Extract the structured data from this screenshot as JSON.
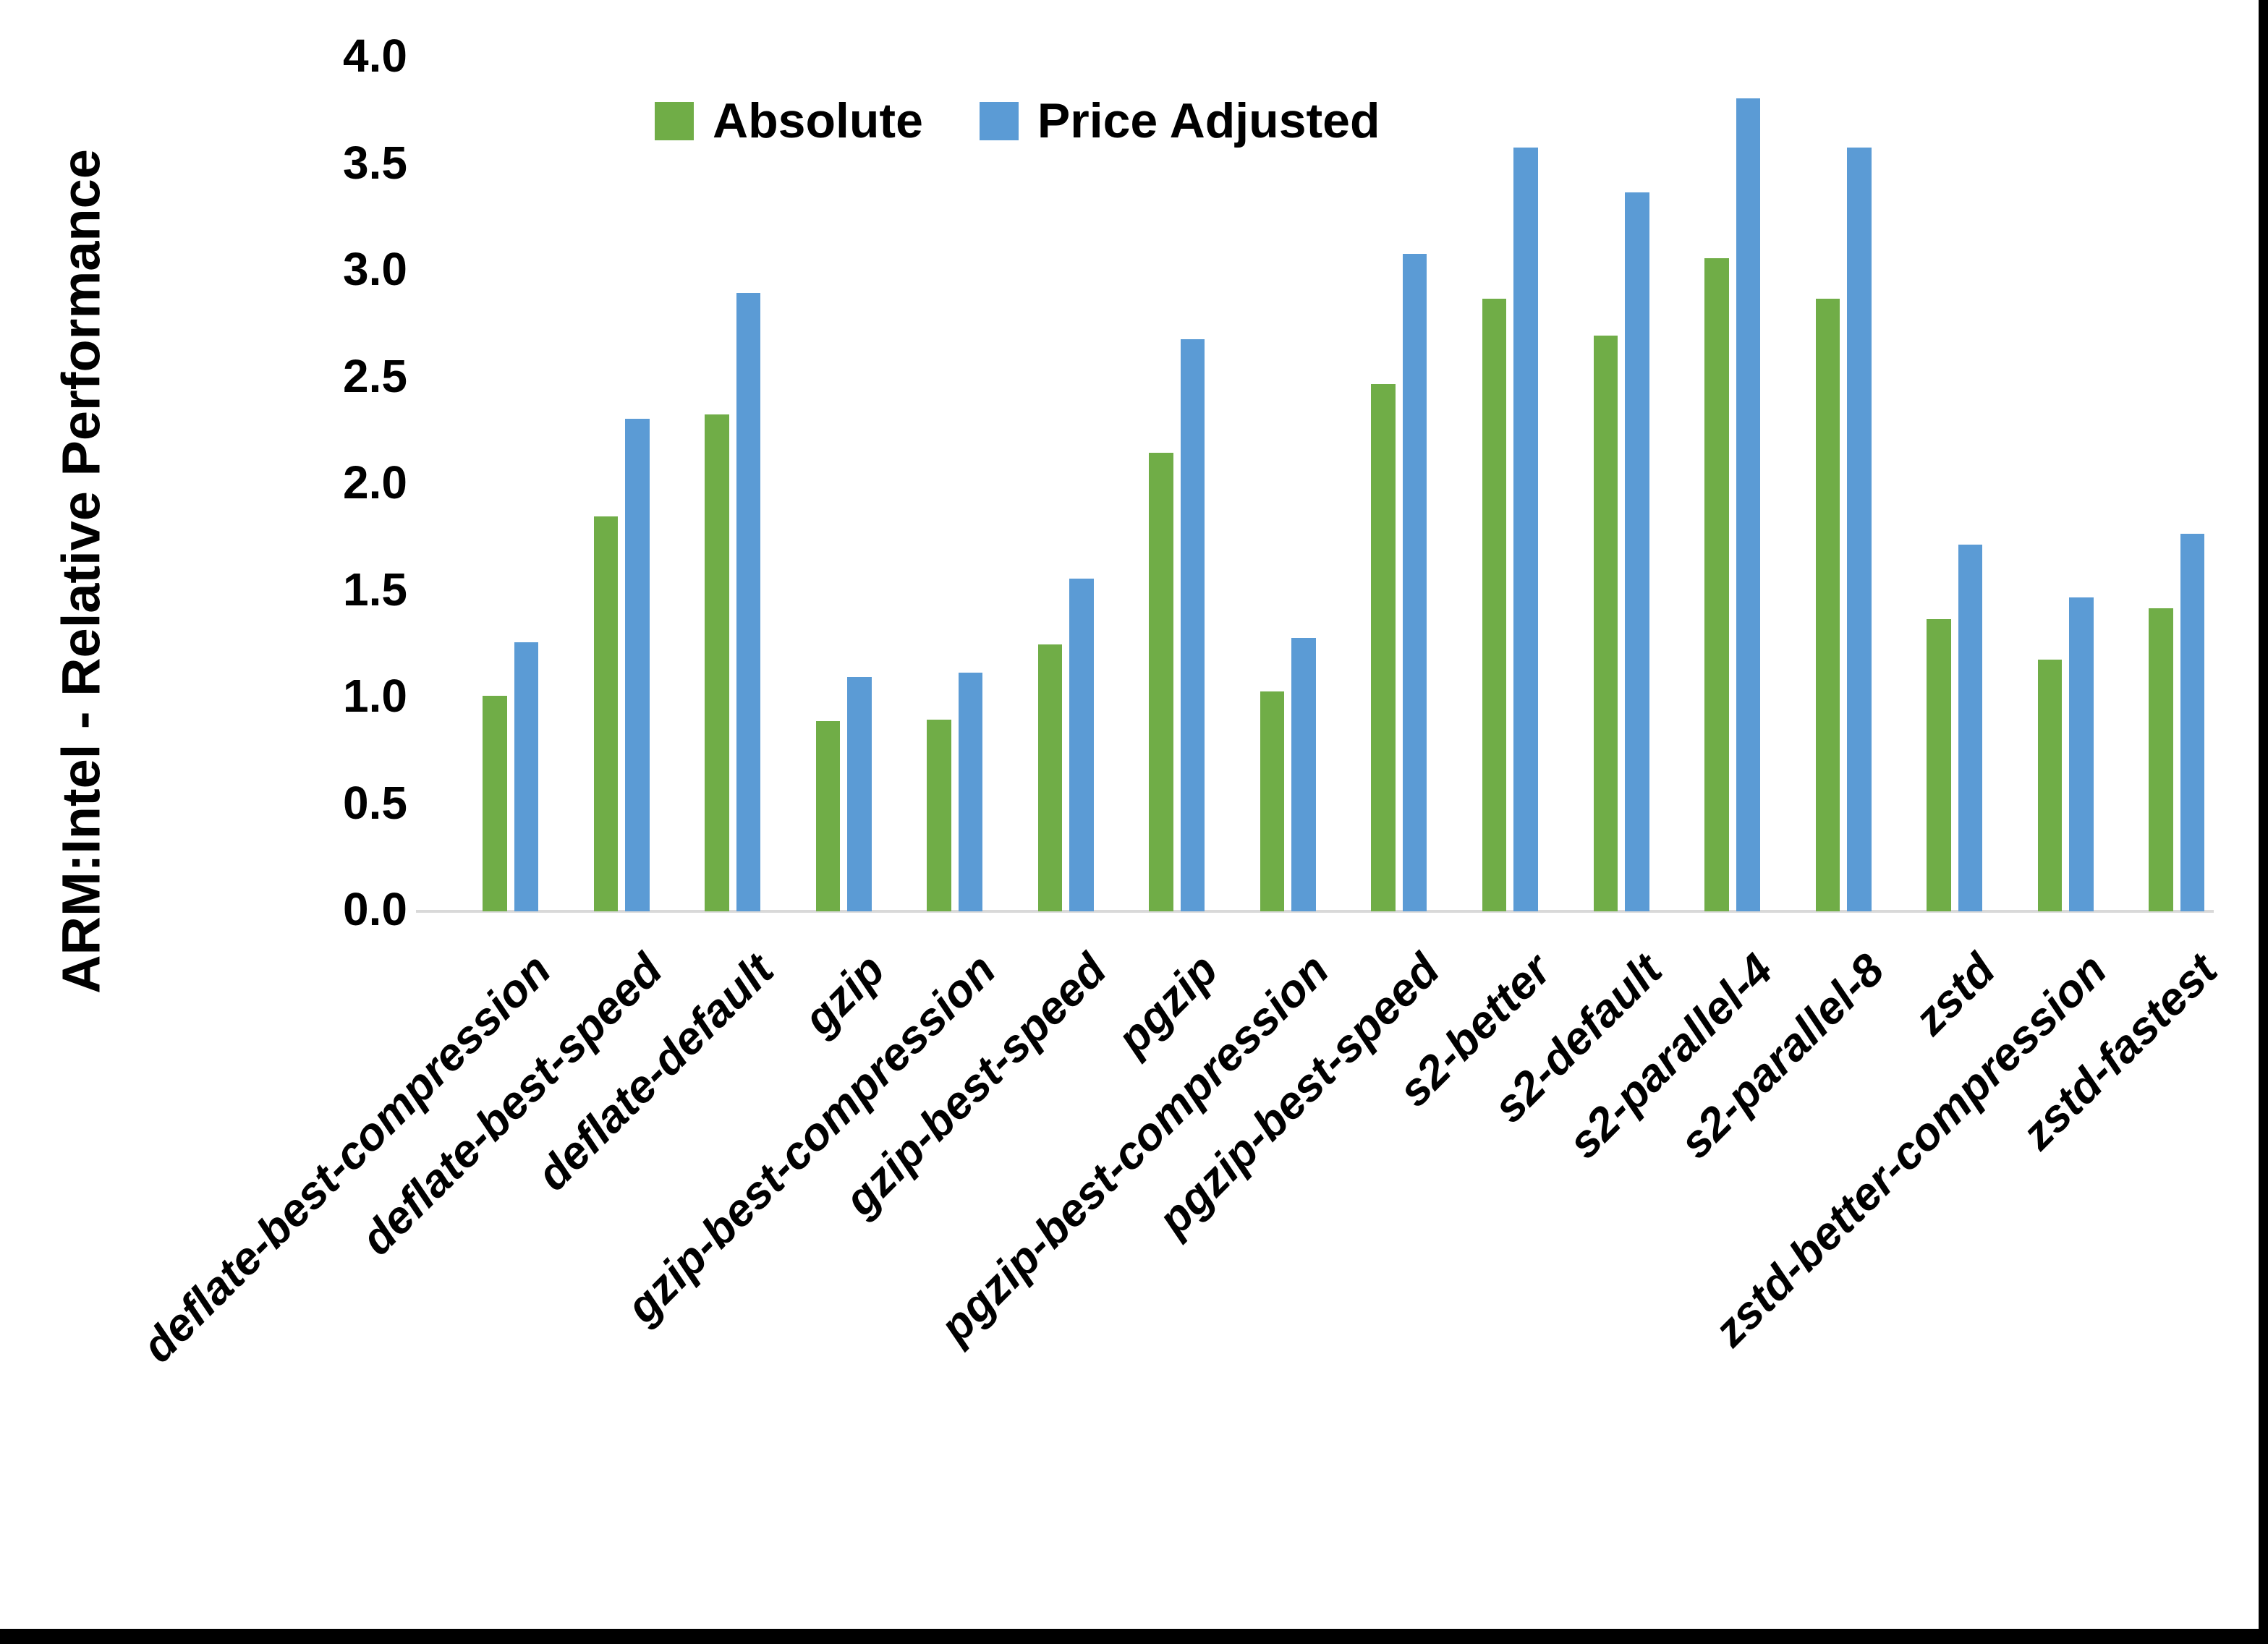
{
  "chart_data": {
    "type": "bar",
    "title": "",
    "xlabel": "",
    "ylabel": "ARM:Intel - Relative Performance",
    "categories": [
      "deflate-best-compression",
      "deflate-best-speed",
      "deflate-default",
      "gzip",
      "gzip-best-compression",
      "gzip-best-speed",
      "pgzip",
      "pgzip-best-compression",
      "pgzip-best-speed",
      "s2-better",
      "s2-default",
      "s2-parallel-4",
      "s2-parallel-8",
      "zstd",
      "zstd-better-compression",
      "zstd-fastest"
    ],
    "series": [
      {
        "name": "Absolute",
        "color": "#70AD47",
        "values": [
          1.01,
          1.85,
          2.33,
          0.89,
          0.9,
          1.25,
          2.15,
          1.03,
          2.47,
          2.87,
          2.7,
          3.06,
          2.87,
          1.37,
          1.18,
          1.42
        ]
      },
      {
        "name": "Price Adjusted",
        "color": "#5B9BD5",
        "values": [
          1.26,
          2.31,
          2.9,
          1.1,
          1.12,
          1.56,
          2.68,
          1.28,
          3.08,
          3.58,
          3.37,
          3.81,
          3.58,
          1.72,
          1.47,
          1.77
        ]
      }
    ],
    "y_ticks": [
      "0.0",
      "0.5",
      "1.0",
      "1.5",
      "2.0",
      "2.5",
      "3.0",
      "3.5",
      "4.0"
    ],
    "ylim": [
      0.0,
      4.0
    ],
    "grid": false,
    "legend_position": "top-center",
    "axis_line_color": "#D9D9D9",
    "background_color": "#FFFFFF",
    "border_color": "#000000"
  }
}
